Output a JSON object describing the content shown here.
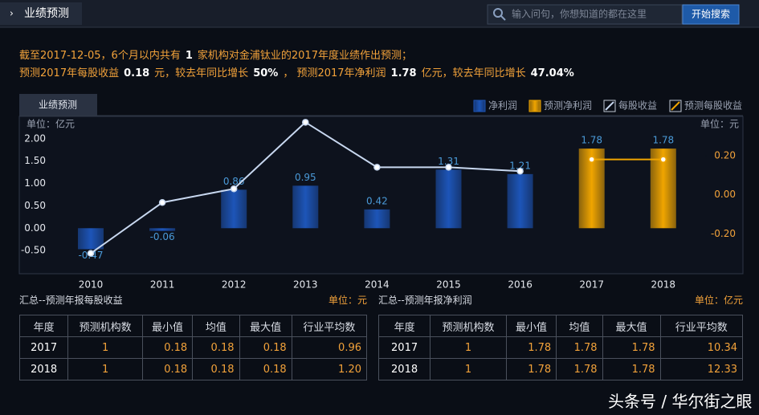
{
  "header": {
    "tab": "业绩预测",
    "search_placeholder": "输入问句，你想知道的都在这里",
    "search_button": "开始搜索"
  },
  "summary": {
    "line1": [
      "截至2017-12-05，6个月以内共有",
      "1",
      "家机构对金浦钛业的2017年度业绩作出预测；"
    ],
    "line2": [
      "预测2017年每股收益",
      "0.18",
      "元，较去年同比增长",
      "50%",
      "，  预测2017年净利润",
      "1.78",
      "亿元，较去年同比增长",
      "47.04%"
    ]
  },
  "chart_tab": "业绩预测",
  "chart_data": {
    "type": "bar",
    "left_unit": "单位：亿元",
    "right_unit": "单位：元",
    "categories": [
      "2010",
      "2011",
      "2012",
      "2013",
      "2014",
      "2015",
      "2016",
      "2017",
      "2018"
    ],
    "series": [
      {
        "name": "净利润",
        "type": "bar",
        "color": "#1d55b8",
        "values": [
          -0.47,
          -0.06,
          0.86,
          0.95,
          0.42,
          1.31,
          1.21,
          null,
          null
        ]
      },
      {
        "name": "预测净利润",
        "type": "bar",
        "color": "#f0a500",
        "values": [
          null,
          null,
          null,
          null,
          null,
          null,
          null,
          1.78,
          1.78
        ]
      },
      {
        "name": "每股收益",
        "type": "line",
        "axis": "y2",
        "color": "#c8d8f0",
        "values": [
          -0.3,
          -0.04,
          0.03,
          0.37,
          0.14,
          0.14,
          0.12,
          null,
          null
        ]
      },
      {
        "name": "预测每股收益",
        "type": "line",
        "axis": "y2",
        "color": "#f0a500",
        "values": [
          null,
          null,
          null,
          null,
          null,
          null,
          null,
          0.18,
          0.18
        ]
      }
    ],
    "ylim": [
      -1.0,
      2.5
    ],
    "yticks": [
      {
        "value": 2,
        "label": "2.00"
      },
      {
        "value": 1.5,
        "label": "1.50"
      },
      {
        "value": 1,
        "label": "1.00"
      },
      {
        "value": 0.5,
        "label": "0.50"
      },
      {
        "value": 0,
        "label": "0.00"
      },
      {
        "value": -0.5,
        "label": "-0.50"
      }
    ],
    "y2lim": [
      -0.4,
      0.4
    ],
    "y2ticks": [
      {
        "value": 0.2,
        "label": "0.20"
      },
      {
        "value": 0,
        "label": "0.00"
      },
      {
        "value": -0.2,
        "label": "-0.20"
      }
    ],
    "grid": false
  },
  "tables": [
    {
      "title": "汇总--预测年报每股收益",
      "unit": "单位：元",
      "columns": [
        "年度",
        "预测机构数",
        "最小值",
        "均值",
        "最大值",
        "行业平均数"
      ],
      "rows": [
        [
          "2017",
          "1",
          "0.18",
          "0.18",
          "0.18",
          "0.96"
        ],
        [
          "2018",
          "1",
          "0.18",
          "0.18",
          "0.18",
          "1.20"
        ]
      ]
    },
    {
      "title": "汇总--预测年报净利润",
      "unit": "单位：亿元",
      "columns": [
        "年度",
        "预测机构数",
        "最小值",
        "均值",
        "最大值",
        "行业平均数"
      ],
      "rows": [
        [
          "2017",
          "1",
          "1.78",
          "1.78",
          "1.78",
          "10.34"
        ],
        [
          "2018",
          "1",
          "1.78",
          "1.78",
          "1.78",
          "12.33"
        ]
      ]
    }
  ],
  "watermark": "头条号 / 华尔街之眼"
}
